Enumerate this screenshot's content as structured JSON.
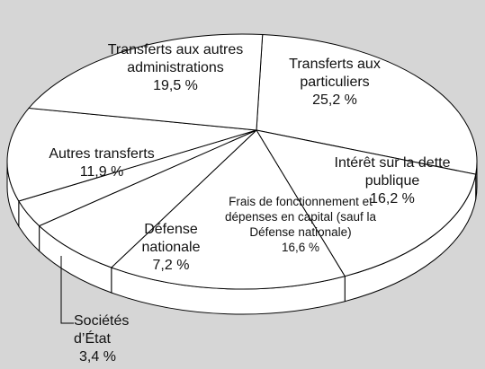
{
  "chart_data": {
    "type": "pie",
    "categories": [
      "Transferts aux particuliers",
      "Intérêt sur la dette publique",
      "Frais de fonctionnement et dépenses en capital (sauf la Défense nationale)",
      "Défense nationale",
      "Sociétés d’État",
      "Autres transferts",
      "Transferts aux autres administrations"
    ],
    "values": [
      25.2,
      16.2,
      16.6,
      7.2,
      3.4,
      11.9,
      19.5
    ],
    "value_labels": [
      "25,2 %",
      "16,2 %",
      "16,6 %",
      "7,2 %",
      "3,4 %",
      "11,9 %",
      "19,5 %"
    ],
    "color": "#ffffff"
  }
}
